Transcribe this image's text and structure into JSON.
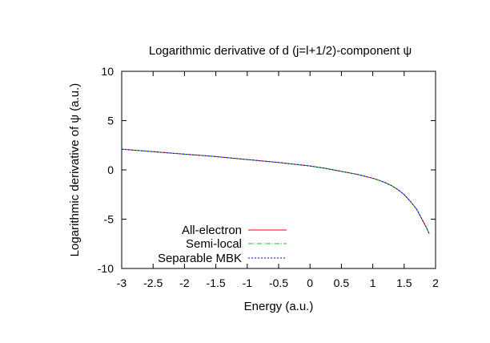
{
  "chart_data": {
    "type": "line",
    "title": "Logarithmic derivative of d (j=l+1/2)-component ψ",
    "xlabel": "Energy (a.u.)",
    "ylabel": "Logarithmic derivative of ψ (a.u.)",
    "xlim": [
      -3,
      2
    ],
    "ylim": [
      -10,
      10
    ],
    "x_ticks": [
      -3,
      -2.5,
      -2,
      -1.5,
      -1,
      -0.5,
      0,
      0.5,
      1,
      1.5,
      2
    ],
    "x_tick_labels": [
      "-3",
      "-2.5",
      "-2",
      "-1.5",
      "-1",
      "-0.5",
      "0",
      "0.5",
      "1",
      "1.5",
      "2"
    ],
    "y_ticks": [
      -10,
      -5,
      0,
      5,
      10
    ],
    "y_tick_labels": [
      "-10",
      "-5",
      "0",
      "5",
      "10"
    ],
    "grid": false,
    "legend_position": "bottom-left",
    "x": [
      -3.0,
      -2.5,
      -2.0,
      -1.5,
      -1.0,
      -0.5,
      0.0,
      0.25,
      0.5,
      0.75,
      1.0,
      1.1,
      1.2,
      1.3,
      1.4,
      1.5,
      1.6,
      1.7,
      1.75,
      1.8,
      1.85,
      1.9
    ],
    "series": [
      {
        "name": "All-electron",
        "color": "#ff0000",
        "dash": "solid",
        "values": [
          2.1,
          1.85,
          1.6,
          1.35,
          1.05,
          0.75,
          0.4,
          0.15,
          -0.15,
          -0.45,
          -0.85,
          -1.05,
          -1.3,
          -1.6,
          -2.0,
          -2.5,
          -3.2,
          -4.0,
          -4.6,
          -5.2,
          -5.8,
          -6.5
        ]
      },
      {
        "name": "Semi-local",
        "color": "#00cc00",
        "dash": "6,2,1,2",
        "values": [
          2.1,
          1.85,
          1.6,
          1.35,
          1.05,
          0.75,
          0.4,
          0.15,
          -0.15,
          -0.45,
          -0.85,
          -1.05,
          -1.3,
          -1.6,
          -2.0,
          -2.5,
          -3.2,
          -4.0,
          -4.6,
          -5.2,
          -5.8,
          -6.5
        ]
      },
      {
        "name": "Separable MBK",
        "color": "#0000ff",
        "dash": "2,2",
        "values": [
          2.1,
          1.85,
          1.6,
          1.35,
          1.05,
          0.75,
          0.4,
          0.15,
          -0.15,
          -0.45,
          -0.85,
          -1.05,
          -1.3,
          -1.6,
          -2.0,
          -2.5,
          -3.2,
          -4.0,
          -4.6,
          -5.2,
          -5.8,
          -6.5
        ]
      }
    ]
  }
}
